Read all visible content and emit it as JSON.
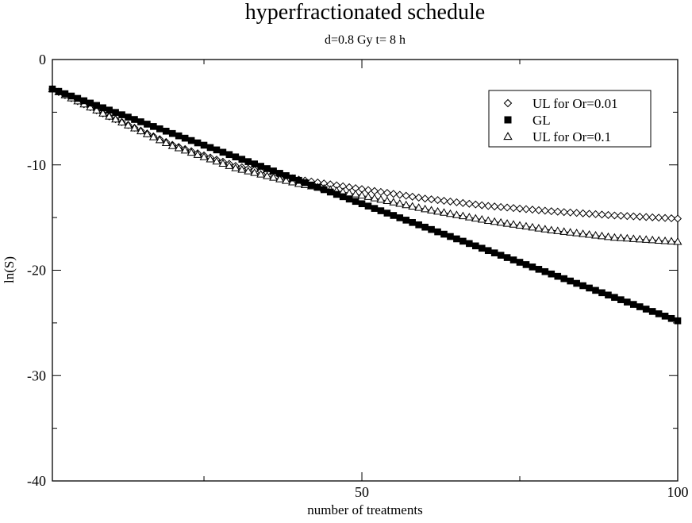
{
  "chart_data": {
    "type": "scatter",
    "title": "hyperfractionated schedule",
    "subtitle": "d=0.8 Gy t= 8 h",
    "xlabel": "number of treatments",
    "ylabel": "ln(S)",
    "xlim": [
      1,
      100
    ],
    "ylim": [
      -40,
      0
    ],
    "x_ticks": [
      50,
      100
    ],
    "y_ticks": [
      0,
      -10,
      -20,
      -30,
      -40
    ],
    "x_minor_ticks": [
      25,
      75
    ],
    "y_minor_ticks": [
      -5,
      -15,
      -25,
      -35
    ],
    "legend_position": "top-right",
    "n_points": 100,
    "series": [
      {
        "name": "UL for Or=0.01",
        "marker": "diamond-open",
        "line": true,
        "anchors": [
          [
            1,
            -2.8
          ],
          [
            10,
            -5.4
          ],
          [
            20,
            -8.1
          ],
          [
            30,
            -10.1
          ],
          [
            40,
            -11.4
          ],
          [
            50,
            -12.3
          ],
          [
            60,
            -13.2
          ],
          [
            70,
            -13.9
          ],
          [
            80,
            -14.4
          ],
          [
            90,
            -14.8
          ],
          [
            100,
            -15.1
          ]
        ]
      },
      {
        "name": "GL",
        "marker": "square-filled",
        "line": false,
        "anchors": [
          [
            1,
            -2.8
          ],
          [
            100,
            -24.8
          ]
        ]
      },
      {
        "name": "UL for Or=0.1",
        "marker": "triangle-open",
        "line": true,
        "anchors": [
          [
            1,
            -2.8
          ],
          [
            10,
            -5.4
          ],
          [
            20,
            -8.2
          ],
          [
            30,
            -10.3
          ],
          [
            40,
            -11.8
          ],
          [
            50,
            -12.9
          ],
          [
            60,
            -14.2
          ],
          [
            70,
            -15.3
          ],
          [
            80,
            -16.2
          ],
          [
            90,
            -16.9
          ],
          [
            100,
            -17.3
          ]
        ]
      }
    ]
  }
}
